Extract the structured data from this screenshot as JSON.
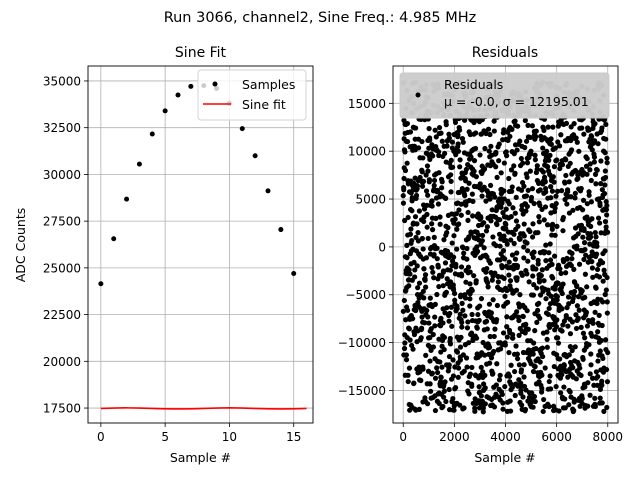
{
  "suptitle": "Run 3066, channel2, Sine Freq.: 4.985 MHz",
  "chart_data": [
    {
      "type": "scatter",
      "title": "Sine Fit",
      "xlabel": "Sample #",
      "ylabel": "ADC Counts",
      "xlim": [
        -1,
        16.5
      ],
      "ylim": [
        16700,
        35800
      ],
      "xticks": [
        0,
        5,
        10,
        15
      ],
      "xtick_labels": [
        "0",
        "5",
        "10",
        "15"
      ],
      "yticks": [
        17500,
        20000,
        22500,
        25000,
        27500,
        30000,
        32500,
        35000
      ],
      "ytick_labels": [
        "17500",
        "20000",
        "22500",
        "25000",
        "27500",
        "30000",
        "32500",
        "35000"
      ],
      "grid": true,
      "legend": "top-right",
      "series": [
        {
          "name": "Samples",
          "mark": "point",
          "color": "#000000",
          "x": [
            0,
            1,
            2,
            3,
            4,
            5,
            6,
            7,
            8,
            9,
            10,
            11,
            12,
            13,
            14,
            15
          ],
          "y": [
            24150,
            26560,
            28680,
            30550,
            32160,
            33400,
            34250,
            34710,
            34750,
            34600,
            33800,
            32450,
            31000,
            29120,
            27050,
            24700
          ]
        },
        {
          "name": "Sine fit",
          "mark": "line",
          "color": "#ff0000",
          "x": [
            0,
            1,
            2,
            3,
            4,
            5,
            6,
            7,
            8,
            9,
            10,
            11,
            12,
            13,
            14,
            15,
            16
          ],
          "y": [
            17480,
            17500,
            17510,
            17500,
            17480,
            17460,
            17450,
            17460,
            17480,
            17500,
            17510,
            17500,
            17480,
            17460,
            17450,
            17460,
            17480
          ]
        }
      ]
    },
    {
      "type": "scatter",
      "title": "Residuals",
      "xlabel": "Sample #",
      "ylabel": "",
      "xlim": [
        -400,
        8400
      ],
      "ylim": [
        -18400,
        18900
      ],
      "xticks": [
        0,
        2000,
        4000,
        6000,
        8000
      ],
      "xtick_labels": [
        "0",
        "2000",
        "4000",
        "6000",
        "8000"
      ],
      "yticks": [
        -15000,
        -10000,
        -5000,
        0,
        5000,
        10000,
        15000
      ],
      "ytick_labels": [
        "−15000",
        "−10000",
        "−5000",
        "0",
        "5000",
        "10000",
        "15000"
      ],
      "grid": true,
      "legend": "top-left",
      "series": [
        {
          "name": "Residuals",
          "mark": "point",
          "color": "#000000",
          "n": 8000,
          "x_range": [
            0,
            7999
          ],
          "y_range": [
            -17250,
            17250
          ],
          "mu": "-0.0",
          "sigma": "12195.01",
          "legend_stats": "μ = -0.0, σ = 12195.01"
        }
      ]
    }
  ]
}
